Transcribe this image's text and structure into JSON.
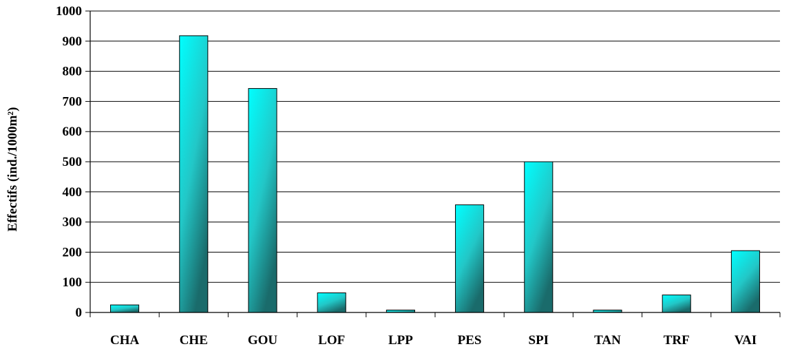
{
  "chart_data": {
    "type": "bar",
    "title": "",
    "xlabel": "",
    "ylabel": "Effectifs (ind./1000m²)",
    "categories": [
      "CHA",
      "CHE",
      "GOU",
      "LOF",
      "LPP",
      "PES",
      "SPI",
      "TAN",
      "TRF",
      "VAI"
    ],
    "values": [
      25,
      918,
      743,
      65,
      8,
      357,
      500,
      8,
      58,
      205
    ],
    "ylim": [
      0,
      1000
    ],
    "yticks": [
      0,
      100,
      200,
      300,
      400,
      500,
      600,
      700,
      800,
      900,
      1000
    ],
    "grid": true,
    "legend": "none",
    "colors": {
      "bar_light": "#00ffff",
      "bar_dark": "#1a6b6b",
      "bar_mid": "#22c7c7",
      "outline": "#000000",
      "grid": "#000000"
    }
  }
}
